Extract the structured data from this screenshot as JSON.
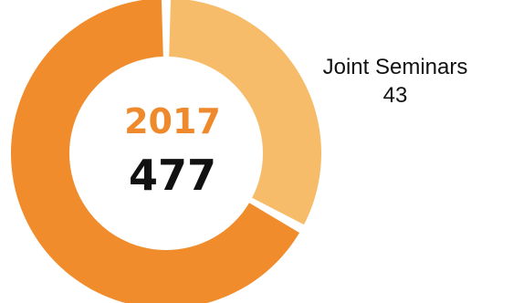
{
  "chart_data": {
    "type": "pie",
    "style": "donut",
    "center": {
      "year": "2017",
      "total": "477"
    },
    "slices": [
      {
        "name": "Joint Seminars",
        "value": 43,
        "value_label": "43",
        "color": "#F7BC6A",
        "label_shown": true
      },
      {
        "name": "",
        "value": 87,
        "color": "#F18C2C",
        "label_shown": false
      }
    ],
    "colors": {
      "year_text": "#EF8A2C",
      "total_text": "#111111",
      "gap": "#ffffff"
    }
  }
}
